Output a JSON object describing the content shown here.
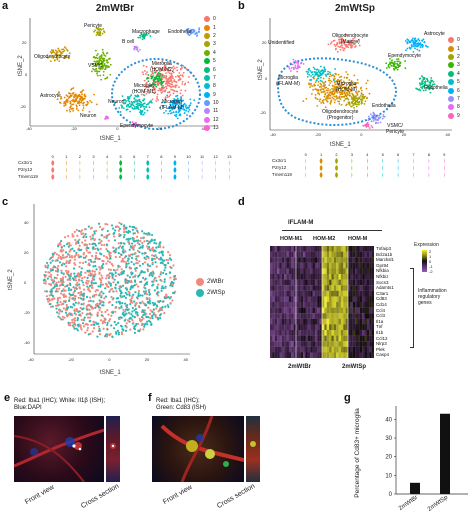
{
  "panels": {
    "a": {
      "letter": "a",
      "title": "2mWtBr",
      "xlabel": "tSNE_1",
      "ylabel": "tSNE_2",
      "xticks": [
        "-40",
        "-20",
        "0",
        "20",
        "40"
      ],
      "yticks": [
        "20",
        "0",
        "-20"
      ],
      "clusters": [
        "Pericyte",
        "Macrophage",
        "Endothelia",
        "B cell",
        "Oligodendrocyte",
        "VSMC",
        "Astrocyte",
        "Microglia",
        "(HOM-M2)",
        "Microglia",
        "(HOM-M1)",
        "Microglia",
        "(IFLAM-M)",
        "Neuron",
        "Neuron",
        "Ependymocyte"
      ],
      "cluster_ids": [
        "3",
        "6",
        "10",
        "11",
        "2",
        "4",
        "1",
        "5",
        "8",
        "7",
        "0",
        "9",
        "13",
        "12"
      ],
      "legend": [
        "0",
        "1",
        "2",
        "3",
        "4",
        "5",
        "6",
        "7",
        "8",
        "9",
        "10",
        "11",
        "12",
        "13"
      ],
      "vln_genes": [
        "Cx3cr1",
        "P2ry12",
        "Tmem119"
      ],
      "vln_ticks": [
        "0",
        "1",
        "2",
        "3",
        "4",
        "5",
        "6",
        "7",
        "8",
        "9",
        "10",
        "11",
        "12",
        "13"
      ]
    },
    "b": {
      "letter": "b",
      "title": "2mWtSp",
      "xlabel": "tSNE_1",
      "ylabel": "tSNE_2",
      "xticks": [
        "-40",
        "-20",
        "0",
        "20",
        "40"
      ],
      "yticks": [
        "20",
        "0",
        "-20"
      ],
      "clusters": [
        "Oligodendrocyte",
        "(Mature)",
        "Astrocyte",
        "Unidentified",
        "Ependymocyte",
        "Microglia",
        "(IFLAM-M)",
        "Microglia",
        "(HOM-M)",
        "Endothelia",
        "Endothelia",
        "Oligodendrocyte",
        "(Progenitor)",
        "VSMC/",
        "Pericyte"
      ],
      "cluster_ids": [
        "0",
        "6",
        "8",
        "1",
        "3",
        "2",
        "5",
        "7",
        "4",
        "9"
      ],
      "legend": [
        "0",
        "1",
        "2",
        "3",
        "4",
        "5",
        "6",
        "7",
        "8",
        "9"
      ],
      "vln_genes": [
        "Cx3cr1",
        "P2ry12",
        "Tmem119"
      ],
      "vln_ticks": [
        "0",
        "1",
        "2",
        "3",
        "4",
        "5",
        "6",
        "7",
        "8",
        "9"
      ]
    },
    "c": {
      "letter": "c",
      "xlabel": "tSNE_1",
      "ylabel": "tSNE_2",
      "xticks": [
        "-40",
        "-20",
        "0",
        "20",
        "40"
      ],
      "yticks": [
        "40",
        "20",
        "0",
        "-20",
        "-40"
      ],
      "legend": [
        {
          "label": "2WtBr",
          "color": "#f08a7e"
        },
        {
          "label": "2WtSp",
          "color": "#2ab7b4"
        }
      ]
    },
    "d": {
      "letter": "d",
      "top_label": "IFLAM-M",
      "col_labels": [
        "HOM-M1",
        "HOM-M2",
        "HOM-M"
      ],
      "genes": [
        "Tnfaip3",
        "Bcl2a1b",
        "Marcksl1",
        "Gpr84",
        "Nfkbia",
        "Nfkbiz",
        "Socs3",
        "Adamts1",
        "C3ar1",
        "Cd83",
        "Cd14",
        "Ccl4",
        "Ccl3",
        "Il1a",
        "Tnf",
        "Il1b",
        "Ccl12",
        "Nlrp3",
        "Plek",
        "Casp4"
      ],
      "scale_title": "Expression",
      "scale_ticks": [
        "2",
        "1",
        "0",
        "-1",
        "-2"
      ],
      "annotation": [
        "Inflammation",
        "regulatory",
        "genes"
      ],
      "group_labels": [
        "2mWtBr",
        "2mWtSp"
      ]
    },
    "e": {
      "letter": "e",
      "caption": [
        "Red: Iba1 (IHC); White: Il1β (ISH);",
        "Blue:DAPI"
      ],
      "front": "Front view",
      "cross": "Cross section"
    },
    "f": {
      "letter": "f",
      "caption": [
        "Red: Iba1 (IHC);",
        "Green: Cd83 (ISH)"
      ],
      "front": "Front view",
      "cross": "Cross section"
    },
    "g": {
      "letter": "g",
      "ylabel": "Percentage of Cd83+ microglia",
      "yticks": [
        "40",
        "30",
        "20",
        "10",
        "0"
      ]
    }
  },
  "chart_data": [
    {
      "type": "bar",
      "categories": [
        "2mWtBr",
        "2mWtSp"
      ],
      "values": [
        6,
        43
      ],
      "title": "",
      "xlabel": "",
      "ylabel": "Percentage of Cd83+ microglia",
      "ylim": [
        0,
        45
      ]
    },
    {
      "type": "heatmap",
      "rows": [
        "Tnfaip3",
        "Bcl2a1b",
        "Marcksl1",
        "Gpr84",
        "Nfkbia",
        "Nfkbiz",
        "Socs3",
        "Adamts1",
        "C3ar1",
        "Cd83",
        "Cd14",
        "Ccl4",
        "Ccl3",
        "Il1a",
        "Tnf",
        "Il1b",
        "Ccl12",
        "Nlrp3",
        "Plek",
        "Casp4"
      ],
      "columns": [
        "HOM-M1",
        "HOM-M2",
        "IFLAM-M",
        "HOM-M"
      ],
      "colorbar": [
        -2,
        2
      ]
    }
  ],
  "colors": {
    "pal14": [
      "#f8766d",
      "#e58700",
      "#c99800",
      "#a3a500",
      "#6bb100",
      "#00ba38",
      "#00bf7d",
      "#00c0af",
      "#00bcd8",
      "#00b0f6",
      "#619cff",
      "#b983ff",
      "#e76bf3",
      "#fd61d1"
    ],
    "pal10": [
      "#f8766d",
      "#d89000",
      "#a3a500",
      "#39b600",
      "#00bf7d",
      "#00bfc4",
      "#00b0f6",
      "#9590ff",
      "#e76bf3",
      "#ff62bc"
    ],
    "dashed": "#2a8fd6",
    "bar": "#111111"
  }
}
